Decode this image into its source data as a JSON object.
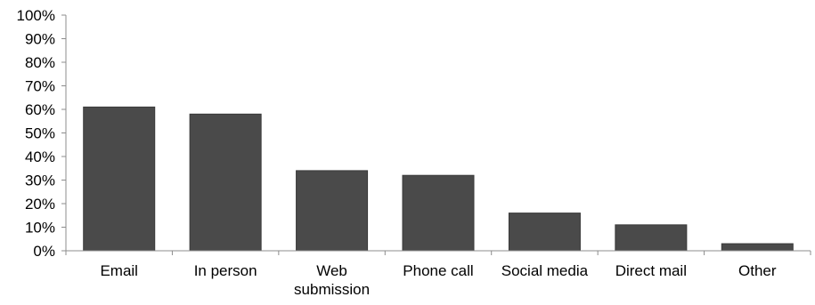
{
  "chart_data": {
    "type": "bar",
    "categories": [
      [
        "Email"
      ],
      [
        "In person"
      ],
      [
        "Web",
        "submission"
      ],
      [
        "Phone call"
      ],
      [
        "Social media"
      ],
      [
        "Direct mail"
      ],
      [
        "Other"
      ]
    ],
    "values": [
      61,
      58,
      34,
      32,
      16,
      11,
      3
    ],
    "value_format": "percent",
    "ylim": [
      0,
      100
    ],
    "y_ticks": [
      "0%",
      "10%",
      "20%",
      "30%",
      "40%",
      "50%",
      "60%",
      "70%",
      "80%",
      "90%",
      "100%"
    ],
    "title": "",
    "xlabel": "",
    "ylabel": "",
    "grid": false,
    "legend": false,
    "colors": {
      "bar": "#4a4a4a",
      "bar_edge": "#3a3a3a",
      "axis": "#8c8c8c",
      "text": "#000000",
      "background": "#ffffff"
    }
  }
}
